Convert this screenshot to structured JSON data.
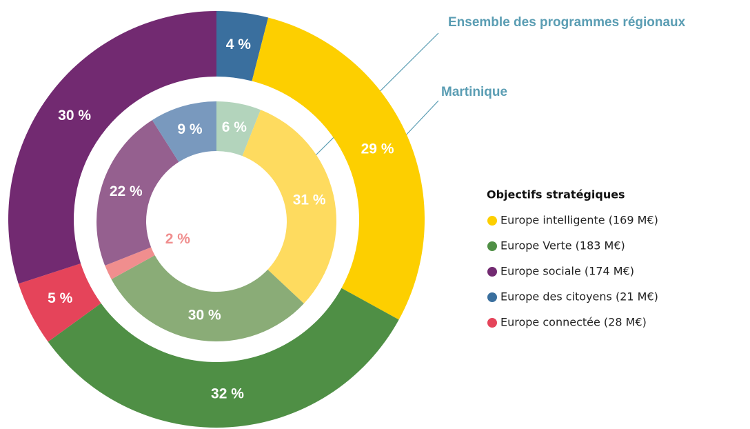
{
  "chart_data": {
    "type": "pie",
    "legend_title": "Objectifs stratégiques",
    "legend": [
      {
        "name": "Europe intelligente (169 M€)",
        "color": "#fdcf00"
      },
      {
        "name": "Europe Verte (183 M€)",
        "color": "#4f8f45"
      },
      {
        "name": "Europe sociale (174 M€)",
        "color": "#722a71"
      },
      {
        "name": "Europe des citoyens (21 M€)",
        "color": "#3a6f9e"
      },
      {
        "name": "Europe connectée (28 M€)",
        "color": "#e5445a"
      }
    ],
    "rings": [
      {
        "name": "Ensemble des programmes régionaux",
        "values": [
          4,
          29,
          32,
          5,
          30
        ],
        "value_labels": [
          "4 %",
          "29 %",
          "32 %",
          "5 %",
          "30 %"
        ],
        "colors": [
          "#3a6f9e",
          "#fdcf00",
          "#4f8f45",
          "#e5445a",
          "#722a71"
        ],
        "label_colors": [
          "#ffffff",
          "#ffffff",
          "#ffffff",
          "#ffffff",
          "#ffffff"
        ]
      },
      {
        "name": "Martinique",
        "values": [
          6,
          31,
          30,
          2,
          22,
          9
        ],
        "value_labels": [
          "6 %",
          "31 %",
          "30 %",
          "2 %",
          "22 %",
          "9 %"
        ],
        "colors": [
          "#b3d4bc",
          "#fedb5f",
          "#8aac77",
          "#f08e8e",
          "#95608f",
          "#7999be"
        ],
        "label_colors": [
          "#ffffff",
          "#ffffff",
          "#ffffff",
          "#f08e8e",
          "#ffffff",
          "#ffffff"
        ]
      }
    ]
  }
}
